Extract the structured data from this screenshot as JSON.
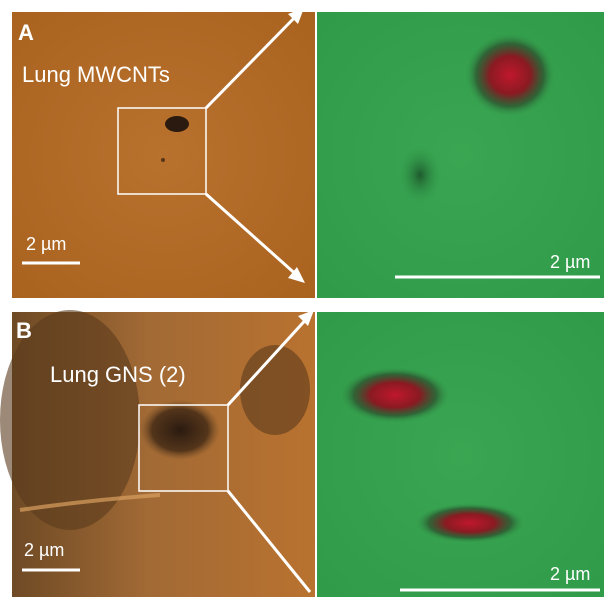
{
  "panels": [
    {
      "label": "A",
      "sample": "Lung MWCNTs",
      "scale_left": "2 µm",
      "scale_right": "2 µm"
    },
    {
      "label": "B",
      "sample": "Lung GNS (2)",
      "scale_left": "2 µm",
      "scale_right": "2 µm"
    }
  ]
}
